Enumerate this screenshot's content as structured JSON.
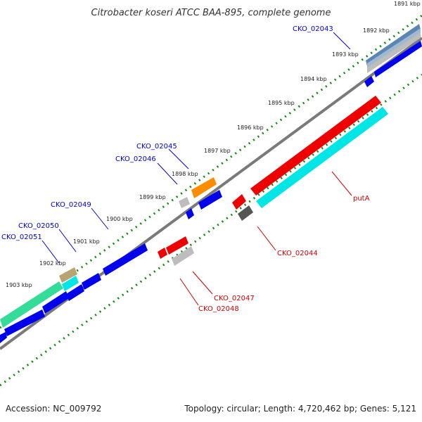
{
  "title": "Citrobacter koseri ATCC BAA-895, complete genome",
  "footer": {
    "accession": "Accession: NC_009792",
    "topology": "Topology: circular; Length: 4,720,462 bp; Genes: 5,121"
  },
  "colors": {
    "backbone": "#808080",
    "blue": "#0000ee",
    "red": "#ee0000",
    "orange": "#ff8c00",
    "cyan": "#00e5e5",
    "green": "#33dd99",
    "tan": "#b8a470",
    "gray": "#999999",
    "darkgray": "#555555",
    "steel": "#5a86b4",
    "label_blue": "#0000cc",
    "label_red": "#cc0000",
    "dotted_green": "#118811"
  },
  "kbp_labels": [
    "1891 kbp",
    "1892 kbp",
    "1893 kbp",
    "1894 kbp",
    "1895 kbp",
    "1896 kbp",
    "1897 kbp",
    "1898 kbp",
    "1899 kbp",
    "1900 kbp",
    "1901 kbp",
    "1902 kbp",
    "1903 kbp"
  ],
  "gene_labels_blue": [
    "CKO_02043",
    "CKO_02045",
    "CKO_02046",
    "CKO_02049",
    "CKO_02050",
    "CKO_02051"
  ],
  "gene_labels_red": [
    "putA",
    "CKO_02044",
    "CKO_02047",
    "CKO_02048"
  ]
}
